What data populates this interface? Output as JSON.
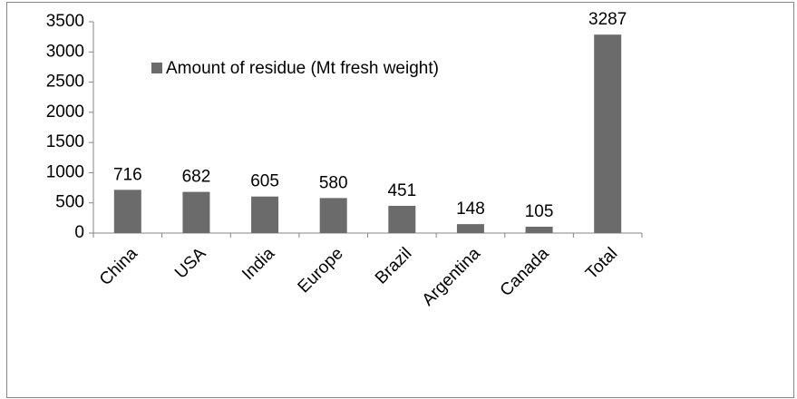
{
  "chart_data": {
    "type": "bar",
    "categories": [
      "China",
      "USA",
      "India",
      "Europe",
      "Brazil",
      "Argentina",
      "Canada",
      "Total"
    ],
    "series": [
      {
        "name": "Amount of residue (Mt fresh weight)",
        "color": "#6b6b6b",
        "values": [
          716,
          682,
          605,
          580,
          451,
          148,
          105,
          3287
        ]
      }
    ],
    "ylim": [
      0,
      3500
    ],
    "yticks": [
      0,
      500,
      1000,
      1500,
      2000,
      2500,
      3000,
      3500
    ],
    "grid": false,
    "legend": "top-left"
  }
}
